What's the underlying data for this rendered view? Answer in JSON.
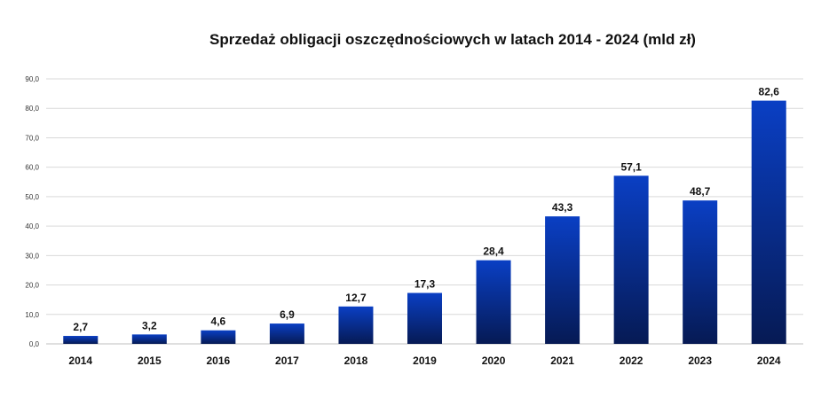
{
  "chart_data": {
    "type": "bar",
    "title": "Sprzedaż obligacji oszczędnościowych w latach 2014 - 2024 (mld zł)",
    "xlabel": "",
    "ylabel": "",
    "categories": [
      "2014",
      "2015",
      "2016",
      "2017",
      "2018",
      "2019",
      "2020",
      "2021",
      "2022",
      "2023",
      "2024"
    ],
    "values": [
      2.7,
      3.2,
      4.6,
      6.9,
      12.7,
      17.3,
      28.4,
      43.3,
      57.1,
      48.7,
      82.6
    ],
    "value_labels": [
      "2,7",
      "3,2",
      "4,6",
      "6,9",
      "12,7",
      "17,3",
      "28,4",
      "43,3",
      "57,1",
      "48,7",
      "82,6"
    ],
    "ylim": [
      0,
      90
    ],
    "y_ticks": [
      0,
      10,
      20,
      30,
      40,
      50,
      60,
      70,
      80,
      90
    ],
    "y_tick_labels": [
      "0,0",
      "10,0",
      "20,0",
      "30,0",
      "40,0",
      "50,0",
      "60,0",
      "70,0",
      "80,0",
      "90,0"
    ],
    "grid": true,
    "legend": "none",
    "colors": {
      "bar_top": "#0a3fc4",
      "bar_bottom": "#061a54",
      "grid": "#d9d9d9"
    }
  }
}
